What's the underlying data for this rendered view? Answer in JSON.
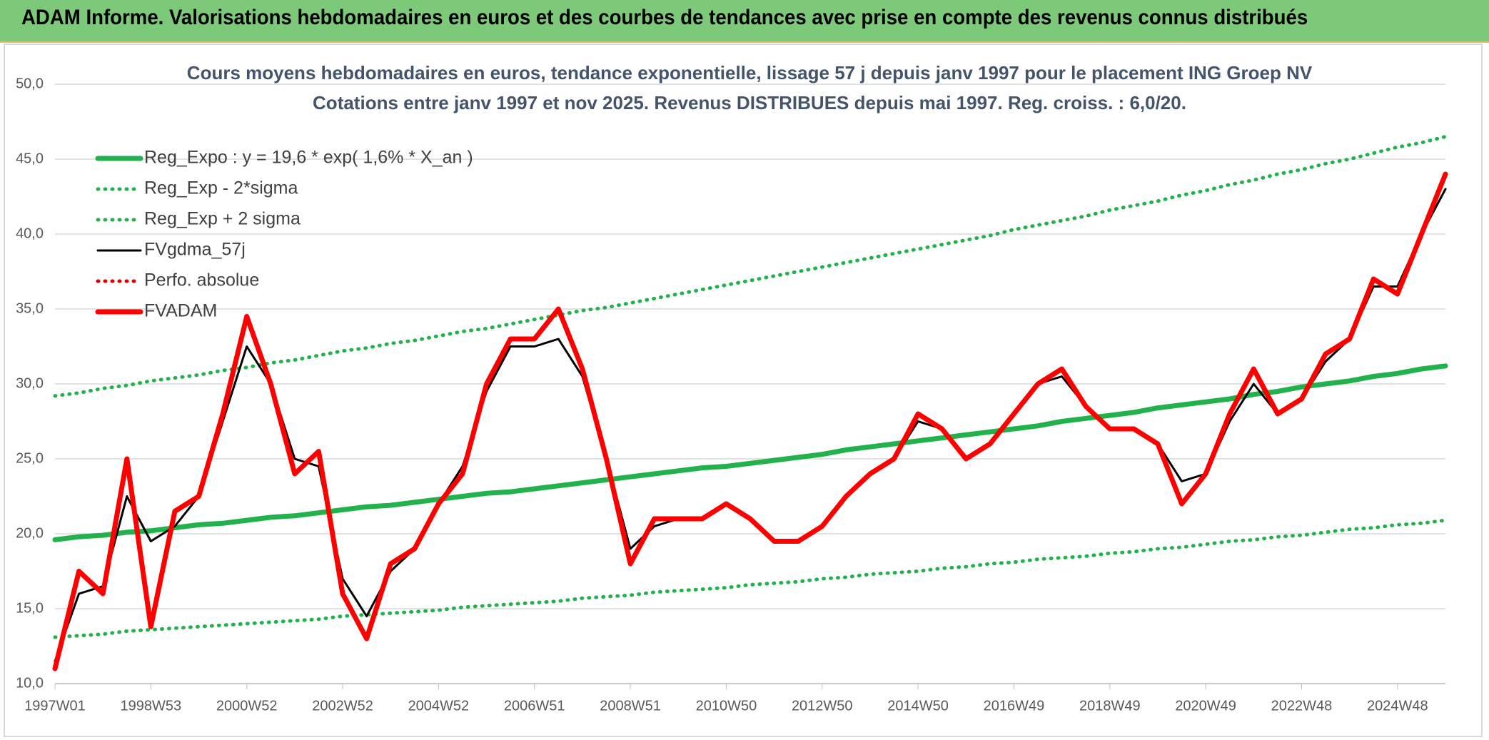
{
  "header": {
    "title": "ADAM Informe. Valorisations hebdomadaires en euros et des courbes de tendances avec prise en compte des revenus connus distribués"
  },
  "chart_data": {
    "type": "line",
    "title": "Cours moyens hebdomadaires en euros, tendance exponentielle, lissage 57 j depuis janv 1997 pour le placement ING Groep NV",
    "subtitle": "Cotations entre janv 1997 et nov 2025. Revenus DISTRIBUES depuis mai 1997. Reg. croiss. : 6,0/20.",
    "categories": [
      "1997W01",
      null,
      null,
      null,
      "1998W53",
      null,
      null,
      null,
      "2000W52",
      null,
      null,
      null,
      "2002W52",
      null,
      null,
      null,
      "2004W52",
      null,
      null,
      null,
      "2006W51",
      null,
      null,
      null,
      "2008W51",
      null,
      null,
      null,
      "2010W50",
      null,
      null,
      null,
      "2012W50",
      null,
      null,
      null,
      "2014W50",
      null,
      null,
      null,
      "2016W49",
      null,
      null,
      null,
      "2018W49",
      null,
      null,
      null,
      "2020W49",
      null,
      null,
      null,
      "2022W48",
      null,
      null,
      null,
      "2024W48",
      null,
      null
    ],
    "ylim": [
      10,
      50
    ],
    "yticks": [
      {
        "value": 10,
        "label": "10,0"
      },
      {
        "value": 15,
        "label": "15,0"
      },
      {
        "value": 20,
        "label": "20,0"
      },
      {
        "value": 25,
        "label": "25,0"
      },
      {
        "value": 30,
        "label": "30,0"
      },
      {
        "value": 35,
        "label": "35,0"
      },
      {
        "value": 40,
        "label": "40,0"
      },
      {
        "value": 45,
        "label": "45,0"
      },
      {
        "value": 50,
        "label": "50,0"
      }
    ],
    "grid": true,
    "legend": "top-left",
    "series": [
      {
        "name": "Reg_Expo : y = 19,6 * exp( 1,6% *  X_an )",
        "color": "#22b14c",
        "style": "thick",
        "values": [
          19.6,
          19.8,
          19.9,
          20.1,
          20.2,
          20.4,
          20.6,
          20.7,
          20.9,
          21.1,
          21.2,
          21.4,
          21.6,
          21.8,
          21.9,
          22.1,
          22.3,
          22.5,
          22.7,
          22.8,
          23.0,
          23.2,
          23.4,
          23.6,
          23.8,
          24.0,
          24.2,
          24.4,
          24.5,
          24.7,
          24.9,
          25.1,
          25.3,
          25.6,
          25.8,
          26.0,
          26.2,
          26.4,
          26.6,
          26.8,
          27.0,
          27.2,
          27.5,
          27.7,
          27.9,
          28.1,
          28.4,
          28.6,
          28.8,
          29.0,
          29.3,
          29.5,
          29.8,
          30.0,
          30.2,
          30.5,
          30.7,
          31.0,
          31.2
        ]
      },
      {
        "name": "Reg_Exp - 2*sigma",
        "color": "#22b14c",
        "style": "dotted",
        "values": [
          13.1,
          13.2,
          13.3,
          13.5,
          13.6,
          13.7,
          13.8,
          13.9,
          14.0,
          14.1,
          14.2,
          14.3,
          14.5,
          14.6,
          14.7,
          14.8,
          14.9,
          15.1,
          15.2,
          15.3,
          15.4,
          15.5,
          15.7,
          15.8,
          15.9,
          16.1,
          16.2,
          16.3,
          16.4,
          16.6,
          16.7,
          16.8,
          17.0,
          17.1,
          17.3,
          17.4,
          17.5,
          17.7,
          17.8,
          18.0,
          18.1,
          18.3,
          18.4,
          18.5,
          18.7,
          18.8,
          19.0,
          19.1,
          19.3,
          19.5,
          19.6,
          19.8,
          19.9,
          20.1,
          20.3,
          20.4,
          20.6,
          20.7,
          20.9
        ]
      },
      {
        "name": "Reg_Exp + 2 sigma",
        "color": "#22b14c",
        "style": "dotted",
        "values": [
          29.2,
          29.4,
          29.7,
          29.9,
          30.2,
          30.4,
          30.6,
          30.9,
          31.1,
          31.4,
          31.6,
          31.9,
          32.2,
          32.4,
          32.7,
          32.9,
          33.2,
          33.5,
          33.7,
          34.0,
          34.3,
          34.6,
          34.9,
          35.1,
          35.4,
          35.7,
          36.0,
          36.3,
          36.6,
          36.9,
          37.2,
          37.5,
          37.8,
          38.1,
          38.4,
          38.7,
          39.0,
          39.3,
          39.6,
          39.9,
          40.3,
          40.6,
          40.9,
          41.2,
          41.6,
          41.9,
          42.2,
          42.6,
          42.9,
          43.3,
          43.6,
          44.0,
          44.3,
          44.7,
          45.0,
          45.4,
          45.8,
          46.1,
          46.5
        ]
      },
      {
        "name": "FVgdma_57j",
        "color": "#000000",
        "style": "solid",
        "values": [
          11.5,
          16.0,
          16.5,
          22.5,
          19.5,
          20.5,
          22.5,
          27.5,
          32.5,
          30.0,
          25.0,
          24.5,
          17.0,
          14.5,
          17.5,
          19.0,
          22.0,
          24.5,
          29.5,
          32.5,
          32.5,
          33.0,
          30.5,
          25.0,
          19.0,
          20.5,
          21.0,
          21.0,
          22.0,
          21.0,
          19.5,
          19.5,
          20.5,
          22.5,
          24.0,
          25.0,
          27.5,
          27.0,
          25.0,
          26.0,
          28.0,
          30.0,
          30.5,
          28.5,
          27.0,
          27.0,
          26.0,
          23.5,
          24.0,
          27.5,
          30.0,
          28.0,
          29.0,
          31.5,
          33.0,
          36.5,
          36.5,
          40.0,
          43.0
        ]
      },
      {
        "name": "Perfo. absolue",
        "color": "#e00000",
        "style": "dotted",
        "values": [
          null,
          null,
          null,
          null,
          null,
          null,
          null,
          null,
          null,
          null,
          null,
          null,
          null,
          null,
          null,
          null,
          null,
          null,
          null,
          null,
          null,
          null,
          null,
          null,
          null,
          null,
          null,
          null,
          null,
          null,
          null,
          null,
          null,
          null,
          null,
          null,
          null,
          null,
          null,
          null,
          null,
          null,
          null,
          null,
          null,
          null,
          null,
          null,
          null,
          null,
          null,
          null,
          null,
          null,
          null,
          null,
          null,
          null,
          null
        ]
      },
      {
        "name": "FVADAM",
        "color": "#ff0000",
        "style": "thick",
        "values": [
          11.0,
          17.5,
          16.0,
          25.0,
          13.8,
          21.5,
          22.5,
          28.0,
          34.5,
          30.0,
          24.0,
          25.5,
          16.0,
          13.0,
          18.0,
          19.0,
          22.0,
          24.0,
          30.0,
          33.0,
          33.0,
          35.0,
          31.0,
          25.0,
          18.0,
          21.0,
          21.0,
          21.0,
          22.0,
          21.0,
          19.5,
          19.5,
          20.5,
          22.5,
          24.0,
          25.0,
          28.0,
          27.0,
          25.0,
          26.0,
          28.0,
          30.0,
          31.0,
          28.5,
          27.0,
          27.0,
          26.0,
          22.0,
          24.0,
          28.0,
          31.0,
          28.0,
          29.0,
          32.0,
          33.0,
          37.0,
          36.0,
          40.0,
          44.0
        ]
      }
    ]
  }
}
